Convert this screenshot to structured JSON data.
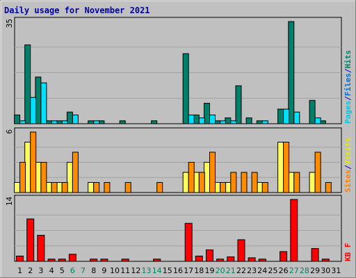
{
  "chart_data": {
    "type": "bar",
    "title": "Daily usage for November 2021",
    "days": [
      "1",
      "2",
      "3",
      "4",
      "5",
      "6",
      "7",
      "8",
      "9",
      "10",
      "11",
      "12",
      "13",
      "14",
      "15",
      "16",
      "17",
      "18",
      "19",
      "20",
      "21",
      "22",
      "23",
      "24",
      "25",
      "26",
      "27",
      "28",
      "29",
      "30",
      "31"
    ],
    "weekend_days": [
      "6",
      "7",
      "13",
      "14",
      "20",
      "21",
      "27",
      "28"
    ],
    "panels": [
      {
        "id": "hits",
        "ymax_label": "35",
        "ymax": 35,
        "legend": [
          {
            "text": "Pages",
            "color": "#00c8e6"
          },
          {
            "text": "/",
            "color": "#0000cc"
          },
          {
            "text": "Files",
            "color": "#0070d0"
          },
          {
            "text": "/",
            "color": "#0000cc"
          },
          {
            "text": "Hits",
            "color": "#00806b"
          }
        ],
        "series": [
          {
            "name": "Hits",
            "color": "#00806b",
            "values": [
              3,
              27,
              16,
              1,
              1,
              4,
              0,
              1,
              1,
              0,
              1,
              0,
              0,
              1,
              0,
              0,
              24,
              3,
              7,
              1,
              2,
              13,
              2,
              1,
              0,
              5,
              35,
              0,
              8,
              1,
              0
            ]
          },
          {
            "name": "Files",
            "color": "#00e0ff",
            "values": [
              1,
              9,
              14,
              1,
              1,
              3,
              0,
              1,
              0,
              0,
              0,
              0,
              0,
              0,
              0,
              0,
              3,
              2,
              3,
              1,
              1,
              0,
              0,
              1,
              0,
              5,
              4,
              0,
              2,
              0,
              0
            ]
          }
        ]
      },
      {
        "id": "visits",
        "ymax_label": "6",
        "ymax": 6,
        "legend": [
          {
            "text": "Sites",
            "color": "#ff8000"
          },
          {
            "text": "/",
            "color": "#0000cc"
          },
          {
            "text": "Visits",
            "color": "#e8e800"
          }
        ],
        "series": [
          {
            "name": "Visits",
            "color": "#ffff60",
            "values": [
              1,
              5,
              3,
              1,
              1,
              3,
              0,
              1,
              0,
              0,
              0,
              0,
              0,
              0,
              0,
              0,
              2,
              2,
              3,
              1,
              1,
              0,
              0,
              1,
              0,
              5,
              2,
              0,
              2,
              0,
              0
            ]
          },
          {
            "name": "Sites",
            "color": "#ff8c00",
            "values": [
              3,
              6,
              3,
              1,
              1,
              4,
              0,
              1,
              1,
              0,
              1,
              0,
              0,
              1,
              0,
              0,
              3,
              2,
              4,
              1,
              2,
              2,
              2,
              1,
              0,
              5,
              2,
              0,
              4,
              1,
              0
            ]
          }
        ]
      },
      {
        "id": "kbytes",
        "ymax_label": "14",
        "ymax": 14,
        "legend": [
          {
            "text": "KB F",
            "color": "#ff0000"
          }
        ],
        "series": [
          {
            "name": "KB F",
            "color": "#ff0000",
            "values": [
              1.2,
              9.6,
              5.9,
              0.5,
              0.5,
              1.6,
              0,
              0.5,
              0.5,
              0,
              0.5,
              0,
              0,
              0.5,
              0,
              0,
              8.6,
              1.2,
              2.6,
              0.5,
              1.0,
              4.9,
              0.8,
              0.5,
              0,
              2.2,
              14,
              0,
              2.9,
              0.5,
              0
            ]
          }
        ]
      }
    ]
  }
}
